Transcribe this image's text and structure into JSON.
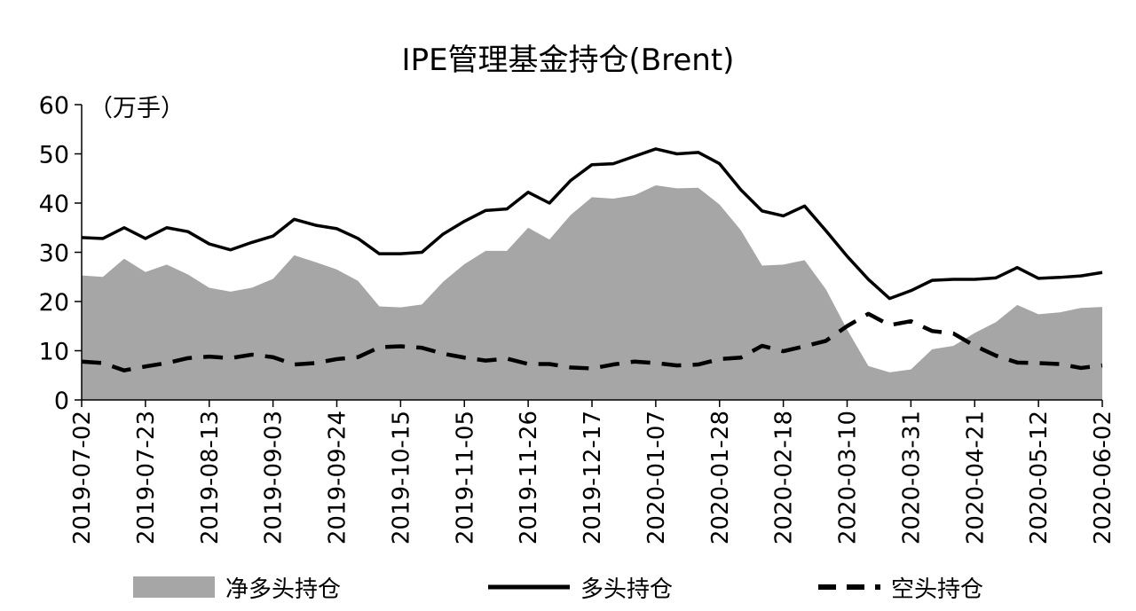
{
  "chart_data": {
    "type": "area",
    "title": "IPE管理基金持仓(Brent)",
    "y_unit": "（万手）",
    "ylim": [
      0,
      60
    ],
    "yticks": [
      "0",
      "10",
      "20",
      "30",
      "40",
      "50",
      "60"
    ],
    "x_tick_labels": [
      "2019-07-02",
      "2019-07-23",
      "2019-08-13",
      "2019-09-03",
      "2019-09-24",
      "2019-10-15",
      "2019-11-05",
      "2019-11-26",
      "2019-12-17",
      "2020-01-07",
      "2020-01-28",
      "2020-02-18",
      "2020-03-10",
      "2020-03-31",
      "2020-04-21",
      "2020-05-12",
      "2020-06-02"
    ],
    "x": [
      "2019-07-02",
      "2019-07-09",
      "2019-07-16",
      "2019-07-23",
      "2019-07-30",
      "2019-08-06",
      "2019-08-13",
      "2019-08-20",
      "2019-08-27",
      "2019-09-03",
      "2019-09-10",
      "2019-09-17",
      "2019-09-24",
      "2019-10-01",
      "2019-10-08",
      "2019-10-15",
      "2019-10-22",
      "2019-10-29",
      "2019-11-05",
      "2019-11-12",
      "2019-11-19",
      "2019-11-26",
      "2019-12-03",
      "2019-12-10",
      "2019-12-17",
      "2019-12-24",
      "2019-12-31",
      "2020-01-07",
      "2020-01-14",
      "2020-01-21",
      "2020-01-28",
      "2020-02-04",
      "2020-02-11",
      "2020-02-18",
      "2020-02-25",
      "2020-03-03",
      "2020-03-10",
      "2020-03-17",
      "2020-03-24",
      "2020-03-31",
      "2020-04-07",
      "2020-04-14",
      "2020-04-21",
      "2020-04-28",
      "2020-05-05",
      "2020-05-12",
      "2020-05-19",
      "2020-05-26",
      "2020-06-02"
    ],
    "series": [
      {
        "name": "净多头持仓",
        "kind": "area",
        "color": "#a6a6a6",
        "values": [
          25.3,
          25.0,
          28.7,
          26.0,
          27.5,
          25.5,
          22.8,
          22.0,
          22.8,
          24.6,
          29.4,
          28.0,
          26.5,
          24.2,
          19.0,
          18.8,
          19.4,
          24.0,
          27.6,
          30.3,
          30.3,
          35.0,
          32.6,
          37.6,
          41.2,
          40.9,
          41.6,
          43.6,
          43.0,
          43.1,
          39.7,
          34.5,
          27.3,
          27.5,
          28.4,
          22.5,
          14.3,
          6.9,
          5.6,
          6.2,
          10.3,
          11.0,
          13.6,
          15.8,
          19.3,
          17.4,
          17.8,
          18.7,
          18.9
        ]
      },
      {
        "name": "多头持仓",
        "kind": "line",
        "color": "#000000",
        "values": [
          33.0,
          32.8,
          35.0,
          32.8,
          35.0,
          34.2,
          31.7,
          30.5,
          32.0,
          33.3,
          36.7,
          35.5,
          34.8,
          32.8,
          29.7,
          29.7,
          30.0,
          33.7,
          36.3,
          38.5,
          38.8,
          42.2,
          40.0,
          44.6,
          47.8,
          48.0,
          49.5,
          51.0,
          50.0,
          50.3,
          48.0,
          42.7,
          38.4,
          37.4,
          39.4,
          34.4,
          29.2,
          24.5,
          20.6,
          22.2,
          24.3,
          24.5,
          24.5,
          24.8,
          26.9,
          24.7,
          24.9,
          25.2,
          25.9
        ]
      },
      {
        "name": "空头持仓",
        "kind": "dashed-line",
        "color": "#000000",
        "values": [
          7.8,
          7.5,
          6.0,
          6.8,
          7.5,
          8.5,
          8.8,
          8.5,
          9.2,
          8.7,
          7.2,
          7.5,
          8.3,
          8.7,
          10.7,
          10.9,
          10.6,
          9.4,
          8.6,
          8.0,
          8.4,
          7.3,
          7.3,
          6.6,
          6.4,
          7.2,
          7.8,
          7.5,
          7.0,
          7.2,
          8.3,
          8.6,
          11.0,
          9.9,
          10.9,
          12.0,
          15.0,
          17.5,
          15.2,
          16.0,
          14.0,
          13.5,
          11.0,
          9.0,
          7.6,
          7.5,
          7.3,
          6.5,
          7.0
        ]
      }
    ]
  }
}
